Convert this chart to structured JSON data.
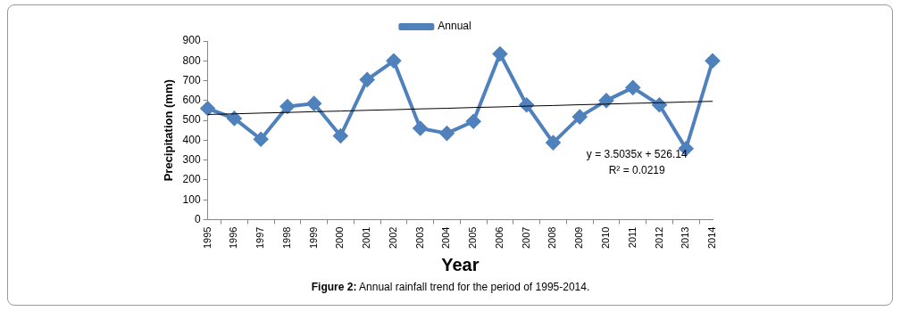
{
  "chart_data": {
    "type": "line",
    "xlabel": "Year",
    "ylabel": "Precipitation (mm)",
    "categories": [
      "1995",
      "1996",
      "1997",
      "1998",
      "1999",
      "2000",
      "2001",
      "2002",
      "2003",
      "2004",
      "2005",
      "2006",
      "2007",
      "2008",
      "2009",
      "2010",
      "2011",
      "2012",
      "2013",
      "2014"
    ],
    "series": [
      {
        "name": "Annual",
        "color": "#4f81bd",
        "values": [
          560,
          510,
          405,
          570,
          585,
          422,
          705,
          800,
          460,
          435,
          495,
          835,
          578,
          388,
          518,
          600,
          665,
          578,
          358,
          800
        ]
      },
      {
        "type": "line",
        "color": "#000000",
        "values": [
          530,
          533,
          537,
          540,
          544,
          547,
          551,
          554,
          558,
          561,
          565,
          568,
          572,
          575,
          579,
          582,
          586,
          589,
          593,
          596
        ],
        "marker": "none"
      }
    ],
    "ylim": [
      0,
      900
    ],
    "yticks": [
      0,
      100,
      200,
      300,
      400,
      500,
      600,
      700,
      800,
      900
    ],
    "grid": false,
    "legend": "top",
    "marker": "diamond",
    "line_style": "solid",
    "annotations": [
      "y = 3.5035x + 526.14",
      "R² = 0.0219",
      "Figure 2:  Annual rainfall trend for the period of 1995-2014."
    ]
  }
}
